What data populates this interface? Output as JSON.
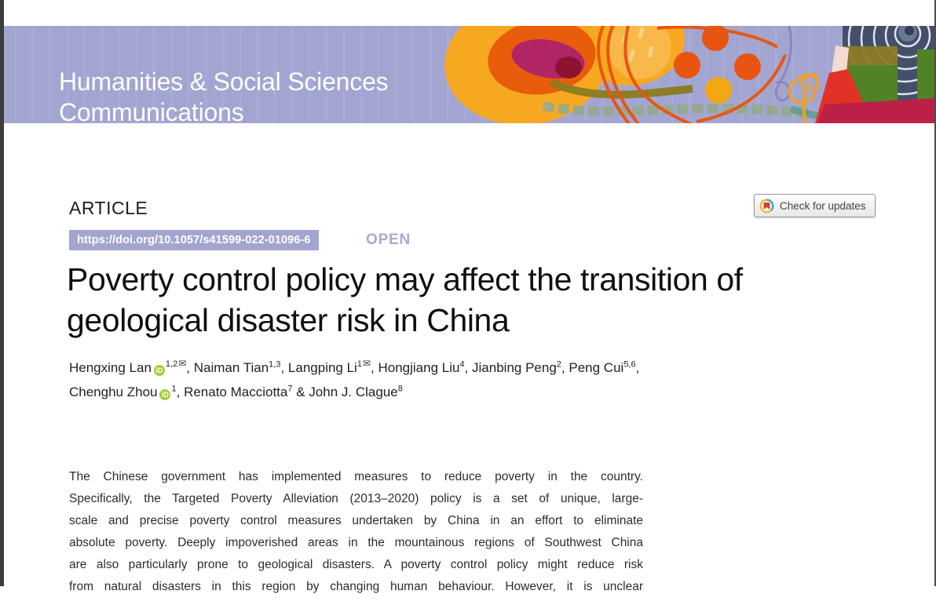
{
  "journal": {
    "name_line1": "Humanities & Social Sciences",
    "name_line2": "Communications",
    "banner_color": "#a3a5d1"
  },
  "article": {
    "kicker": "ARTICLE",
    "doi": "https://doi.org/10.1057/s41599-022-01096-6",
    "open_label": "OPEN",
    "check_updates": "Check for updates",
    "title_line1": "Poverty control policy may affect the transition of",
    "title_line2": "geological disaster risk in China",
    "authors": [
      {
        "name": "Hengxing Lan",
        "orcid": true,
        "sup": "1,2",
        "email": true,
        "sep": ", "
      },
      {
        "name": "Naiman Tian",
        "orcid": false,
        "sup": "1,3",
        "email": false,
        "sep": ", "
      },
      {
        "name": "Langping Li",
        "orcid": false,
        "sup": "1",
        "email": true,
        "sep": ", "
      },
      {
        "name": "Hongjiang Liu",
        "orcid": false,
        "sup": "4",
        "email": false,
        "sep": ", "
      },
      {
        "name": "Jianbing Peng",
        "orcid": false,
        "sup": "2",
        "email": false,
        "sep": ", "
      },
      {
        "name": "Peng Cui",
        "orcid": false,
        "sup": "5,6",
        "email": false,
        "sep": ",",
        "break_after": true
      },
      {
        "name": "Chenghu Zhou",
        "orcid": true,
        "sup": "1",
        "email": false,
        "sep": ", "
      },
      {
        "name": "Renato Macciotta",
        "orcid": false,
        "sup": "7",
        "email": false,
        "sep": " & "
      },
      {
        "name": "John J. Clague",
        "orcid": false,
        "sup": "8",
        "email": false,
        "sep": ""
      }
    ],
    "abstract_lines": [
      "The Chinese government has implemented measures to reduce poverty in the country.",
      "Specifically, the Targeted Poverty Alleviation (2013–2020) policy is a set of unique, large-",
      "scale and precise poverty control measures undertaken by China in an effort to eliminate",
      "absolute poverty. Deeply impoverished areas in the mountainous regions of Southwest China",
      "are also particularly prone to geological disasters. A poverty control policy might reduce risk",
      "from natural disasters in this region by changing human behaviour. However, it is unclear"
    ]
  },
  "icons": {
    "orcid": "iD",
    "email": "✉",
    "crossmark": "crossmark-logo"
  },
  "colors": {
    "banner_lavender": "#a3a5d1",
    "doi_badge": "#a3a5d1",
    "open_text": "#a7aad6",
    "orcid_green": "#a6ce39",
    "crossmark_red": "#d6402e",
    "crossmark_blue": "#3aa7dc",
    "crossmark_yellow": "#f3bb2f"
  }
}
